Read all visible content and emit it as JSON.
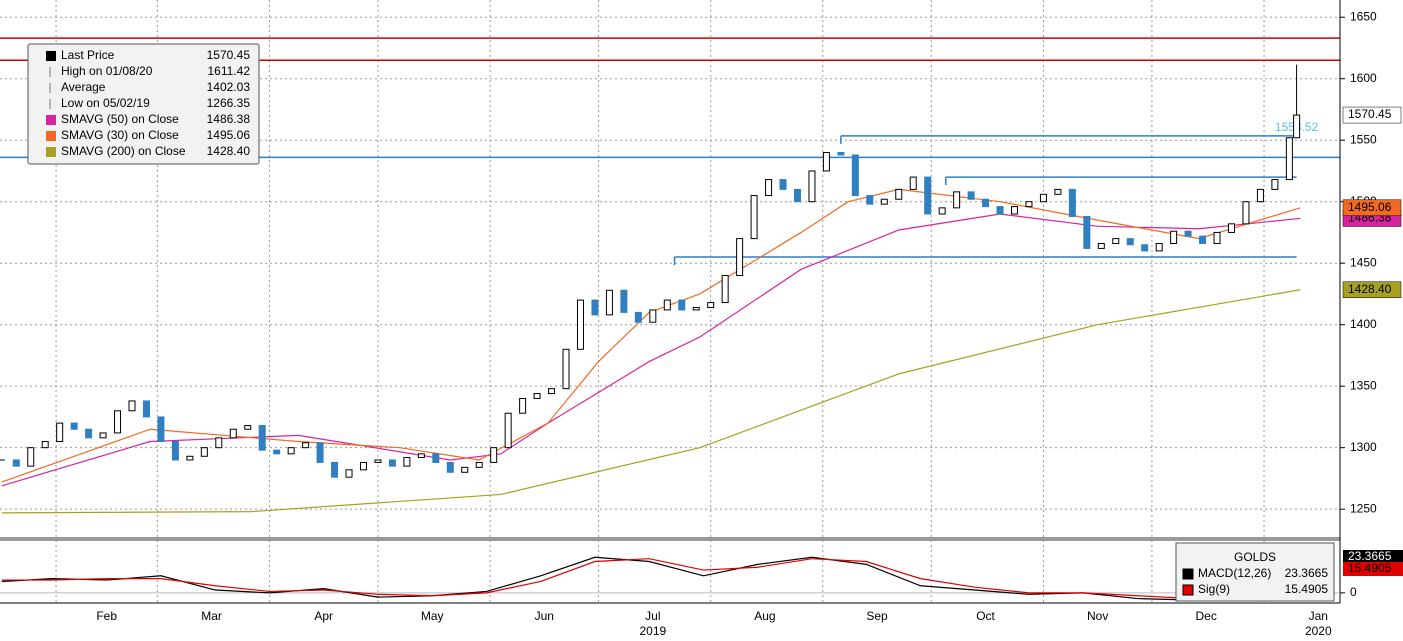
{
  "chart_data": [
    {
      "type": "candlestick",
      "x": [
        16,
        20,
        24,
        28,
        32,
        36,
        40,
        44,
        48,
        52,
        56,
        60,
        64,
        68,
        72,
        76,
        80,
        84,
        88,
        92,
        96,
        100,
        104,
        108,
        112,
        116,
        120,
        124,
        128,
        132,
        136,
        140,
        144,
        148,
        152,
        156,
        160,
        164,
        168,
        172,
        176,
        180,
        184,
        188,
        192,
        196,
        200,
        204,
        208,
        212,
        216,
        220,
        224,
        228,
        232,
        236,
        240,
        244,
        248,
        252,
        256,
        260,
        264,
        268,
        272,
        276,
        280,
        284,
        288,
        292,
        296,
        300,
        304,
        308,
        312,
        316,
        320,
        324,
        328,
        332,
        336,
        340,
        344,
        348,
        352,
        356,
        360,
        364,
        368,
        372,
        374
      ],
      "close": [
        1290,
        1285,
        1300,
        1305,
        1320,
        1315,
        1308,
        1312,
        1330,
        1338,
        1325,
        1305,
        1290,
        1293,
        1300,
        1308,
        1315,
        1318,
        1298,
        1295,
        1300,
        1304,
        1288,
        1276,
        1282,
        1288,
        1290,
        1285,
        1292,
        1295,
        1288,
        1280,
        1284,
        1288,
        1300,
        1328,
        1340,
        1344,
        1348,
        1380,
        1420,
        1408,
        1428,
        1410,
        1402,
        1412,
        1420,
        1412,
        1414,
        1418,
        1440,
        1470,
        1505,
        1518,
        1510,
        1500,
        1525,
        1540,
        1538,
        1505,
        1498,
        1502,
        1510,
        1520,
        1490,
        1495,
        1508,
        1502,
        1496,
        1490,
        1496,
        1500,
        1506,
        1510,
        1488,
        1462,
        1466,
        1470,
        1465,
        1460,
        1466,
        1476,
        1472,
        1466,
        1475,
        1482,
        1500,
        1510,
        1518,
        1552,
        1570.45
      ],
      "up_color": "#ffffff",
      "down_color": "#2f7fc1",
      "xlim": [
        15.5,
        386
      ],
      "ylim": [
        1229,
        1664
      ],
      "yticks": [
        1250,
        1300,
        1350,
        1400,
        1450,
        1500,
        1550,
        1600,
        1650
      ],
      "xticks": [
        {
          "value": 45,
          "label": "Feb"
        },
        {
          "value": 74,
          "label": "Mar"
        },
        {
          "value": 105,
          "label": "Apr"
        },
        {
          "value": 135,
          "label": "May"
        },
        {
          "value": 166,
          "label": "Jun"
        },
        {
          "value": 196,
          "label": "Jul"
        },
        {
          "value": 227,
          "label": "Aug"
        },
        {
          "value": 258,
          "label": "Sep"
        },
        {
          "value": 288,
          "label": "Oct"
        },
        {
          "value": 319,
          "label": "Nov"
        },
        {
          "value": 349,
          "label": "Dec"
        },
        {
          "value": 380,
          "label": "Jan"
        }
      ],
      "xgrid": [
        31,
        59,
        90,
        120,
        151,
        181,
        212,
        243,
        273,
        304,
        334,
        365
      ],
      "year_labels": [
        {
          "value": 196,
          "label": "2019"
        },
        {
          "value": 380,
          "label": "2020"
        }
      ],
      "grid": true,
      "series": [
        {
          "color": "#d6249f",
          "x": [
            16,
            57,
            98,
            140,
            154,
            167,
            181,
            195,
            209,
            237,
            264,
            292,
            319,
            347,
            375
          ],
          "values": [
            1269,
            1305,
            1310,
            1290,
            1295,
            1320,
            1345,
            1370,
            1390,
            1445,
            1477,
            1490,
            1480,
            1478,
            1486.38
          ]
        },
        {
          "color": "#f26a21",
          "x": [
            16,
            57,
            98,
            126,
            148,
            167,
            181,
            195,
            209,
            237,
            250,
            264,
            292,
            319,
            347,
            375
          ],
          "values": [
            1272,
            1315,
            1305,
            1300,
            1290,
            1320,
            1370,
            1410,
            1425,
            1475,
            1500,
            1510,
            1500,
            1485,
            1470,
            1495.06
          ]
        },
        {
          "color": "#a8a020",
          "x": [
            16,
            85,
            154,
            209,
            264,
            319,
            375
          ],
          "values": [
            1247,
            1248,
            1262,
            1300,
            1360,
            1400,
            1428.4
          ]
        }
      ],
      "levels": [
        {
          "value": 1633,
          "color": "#d00000"
        },
        {
          "value": 1615,
          "color": "#d00000"
        },
        {
          "value": 1536,
          "color": "#2f7fc1"
        },
        {
          "value": 1553.52,
          "color": "#2f7fc1",
          "from": 248,
          "annotate": true
        },
        {
          "value": 1520,
          "color": "#2f7fc1",
          "from": 277
        },
        {
          "value": 1455,
          "color": "#2f7fc1",
          "from": 202
        }
      ],
      "legend": [
        {
          "name": "Last Price",
          "value": 1570.45,
          "label": "1570.45",
          "color": "#000000",
          "tag_color": "#ffffff"
        },
        {
          "name": "High on 01/08/20",
          "value": 1611.42,
          "label": "1611.42"
        },
        {
          "name": "Average",
          "value": 1402.03,
          "label": "1402.03"
        },
        {
          "name": "Low on 05/02/19",
          "value": 1266.35,
          "label": "1266.35"
        },
        {
          "name": "SMAVG (50)  on Close",
          "value": 1486.38,
          "label": "1486.38",
          "color": "#d6249f",
          "tag_color": "#d6249f"
        },
        {
          "name": "SMAVG (30)  on Close",
          "value": 1495.06,
          "label": "1495.06",
          "color": "#f26a21",
          "tag_color": "#f26a21"
        },
        {
          "name": "SMAVG (200)  on Close",
          "value": 1428.4,
          "label": "1428.40",
          "color": "#a8a020",
          "tag_color": "#a8a020"
        }
      ]
    },
    {
      "type": "line",
      "title": "GOLDS",
      "xlim": [
        15.5,
        386
      ],
      "ylim": [
        -5,
        35
      ],
      "yticks": [
        0
      ],
      "x": [
        16,
        30,
        45,
        60,
        75,
        90,
        105,
        120,
        135,
        150,
        165,
        180,
        195,
        210,
        225,
        240,
        255,
        270,
        285,
        300,
        315,
        330,
        345,
        360,
        374
      ],
      "series": [
        {
          "name": "MACD(12,26)",
          "color": "#000000",
          "values": [
            8,
            10,
            9,
            12,
            2,
            0,
            3,
            -3,
            -2,
            1,
            12,
            25,
            22,
            12,
            20,
            25,
            20,
            5,
            2,
            -1,
            0,
            -4,
            -5,
            3,
            23.3665
          ]
        },
        {
          "name": "Sig(9)",
          "color": "#e00000",
          "values": [
            9,
            9,
            10,
            10,
            5,
            1,
            2,
            -1,
            -2,
            0,
            8,
            22,
            24,
            16,
            18,
            24,
            22,
            10,
            4,
            0,
            0,
            -2,
            -4,
            0,
            15.4905
          ]
        }
      ]
    }
  ]
}
